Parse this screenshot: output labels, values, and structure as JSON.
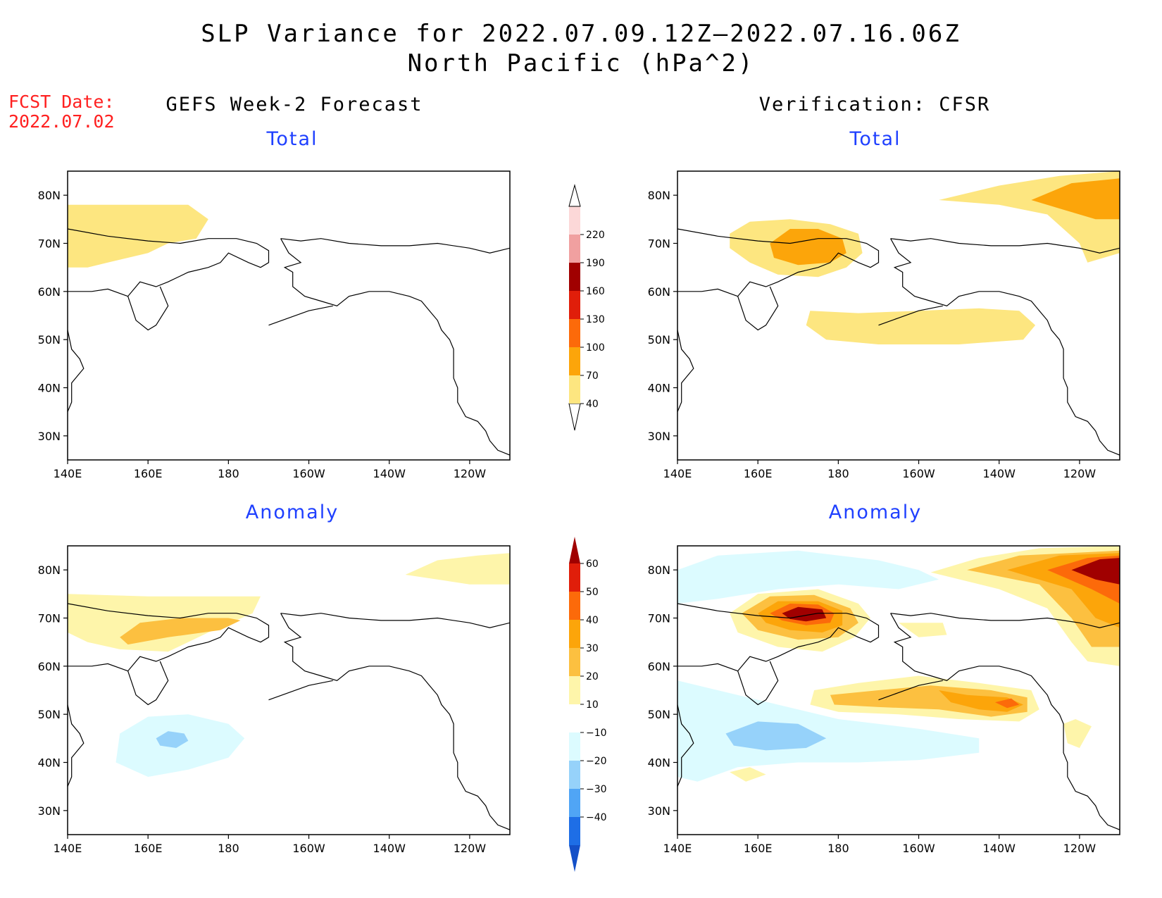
{
  "header": {
    "title_line1": "SLP Variance for 2022.07.09.12Z–2022.07.16.06Z",
    "title_line2": "North Pacific (hPa^2)",
    "fcst_label": "FCST Date:",
    "fcst_date": "2022.07.02"
  },
  "columns": {
    "left": "GEFS Week-2 Forecast",
    "right": "Verification: CFSR"
  },
  "panels": [
    {
      "id": "fcst-total",
      "title": "Total"
    },
    {
      "id": "cfsr-total",
      "title": "Total"
    },
    {
      "id": "fcst-anomaly",
      "title": "Anomaly"
    },
    {
      "id": "cfsr-anomaly",
      "title": "Anomaly"
    }
  ],
  "axes": {
    "lon_ticks": [
      "140E",
      "160E",
      "180",
      "160W",
      "140W",
      "120W"
    ],
    "lat_ticks": [
      "80N",
      "70N",
      "60N",
      "50N",
      "40N",
      "30N"
    ],
    "lon_range_deg": [
      140,
      250
    ],
    "lat_range_deg": [
      25,
      85
    ]
  },
  "colorbars": {
    "total": {
      "levels": [
        "40",
        "70",
        "100",
        "130",
        "160",
        "190",
        "220"
      ],
      "colors": [
        "#fde680",
        "#fca50a",
        "#fc6a0a",
        "#e01e0a",
        "#a00000",
        "#f0a0a0",
        "#fcd8d8"
      ]
    },
    "anomaly": {
      "levels": [
        "60",
        "50",
        "40",
        "30",
        "20",
        "10",
        "−10",
        "−20",
        "−30",
        "−40"
      ],
      "colors": [
        "#a00000",
        "#e01e0a",
        "#fc6a0a",
        "#fca50a",
        "#fcc040",
        "#fef5aa",
        "#ffffff",
        "#dcfbff",
        "#96d2fa",
        "#50a5f5",
        "#1e6ee6",
        "#1450c8"
      ]
    }
  },
  "chart_data": {
    "type": "heatmap",
    "variable": "SLP Variance",
    "units": "hPa^2",
    "valid_period": "2022.07.09.12Z–2022.07.16.06Z",
    "region": "North Pacific",
    "fcst_date": "2022.07.02",
    "x_ticks": [
      "140E",
      "160E",
      "180",
      "160W",
      "140W",
      "120W"
    ],
    "y_ticks": [
      "80N",
      "70N",
      "60N",
      "50N",
      "40N",
      "30N"
    ],
    "total_levels": [
      40,
      70,
      100,
      130,
      160,
      190,
      220
    ],
    "anomaly_levels": [
      -40,
      -30,
      -20,
      -10,
      10,
      20,
      30,
      40,
      50,
      60
    ],
    "panels": [
      {
        "name": "GEFS Week-2 Forecast Total",
        "features": [
          {
            "region_lon": [
              140,
              177
            ],
            "region_lat": [
              64,
              78
            ],
            "value_range": [
              40,
              70
            ]
          }
        ]
      },
      {
        "name": "Verification CFSR Total",
        "features": [
          {
            "region_lon": [
              155,
              185
            ],
            "region_lat": [
              63,
              75
            ],
            "max_range": [
              70,
              100
            ]
          },
          {
            "region_lon": [
              172,
              228
            ],
            "region_lat": [
              49,
              57
            ],
            "value_range": [
              40,
              70
            ]
          },
          {
            "region_lon": [
              205,
              250
            ],
            "region_lat": [
              70,
              84
            ],
            "max_range": [
              70,
              100
            ]
          }
        ]
      },
      {
        "name": "GEFS Week-2 Forecast Anomaly",
        "features": [
          {
            "region_lon": [
              140,
              175
            ],
            "region_lat": [
              64,
              75
            ],
            "max_range": [
              20,
              30
            ]
          },
          {
            "region_lon": [
              150,
              185
            ],
            "region_lat": [
              37,
              50
            ],
            "min_range": [
              -20,
              -10
            ]
          },
          {
            "region_lon": [
              223,
              250
            ],
            "region_lat": [
              77,
              84
            ],
            "value_range": [
              10,
              20
            ]
          }
        ]
      },
      {
        "name": "Verification CFSR Anomaly",
        "features": [
          {
            "region_lon": [
              153,
              186
            ],
            "region_lat": [
              60,
              75
            ],
            "max_range": [
              50,
              60
            ]
          },
          {
            "region_lon": [
              176,
              229
            ],
            "region_lat": [
              47,
              57
            ],
            "max_range": [
              30,
              40
            ]
          },
          {
            "region_lon": [
              208,
              250
            ],
            "region_lat": [
              63,
              84
            ],
            "max_range": [
              50,
              60
            ]
          },
          {
            "region_lon": [
              152,
              178
            ],
            "region_lat": [
              42,
              49
            ],
            "min_range": [
              -20,
              -10
            ]
          }
        ]
      }
    ]
  }
}
